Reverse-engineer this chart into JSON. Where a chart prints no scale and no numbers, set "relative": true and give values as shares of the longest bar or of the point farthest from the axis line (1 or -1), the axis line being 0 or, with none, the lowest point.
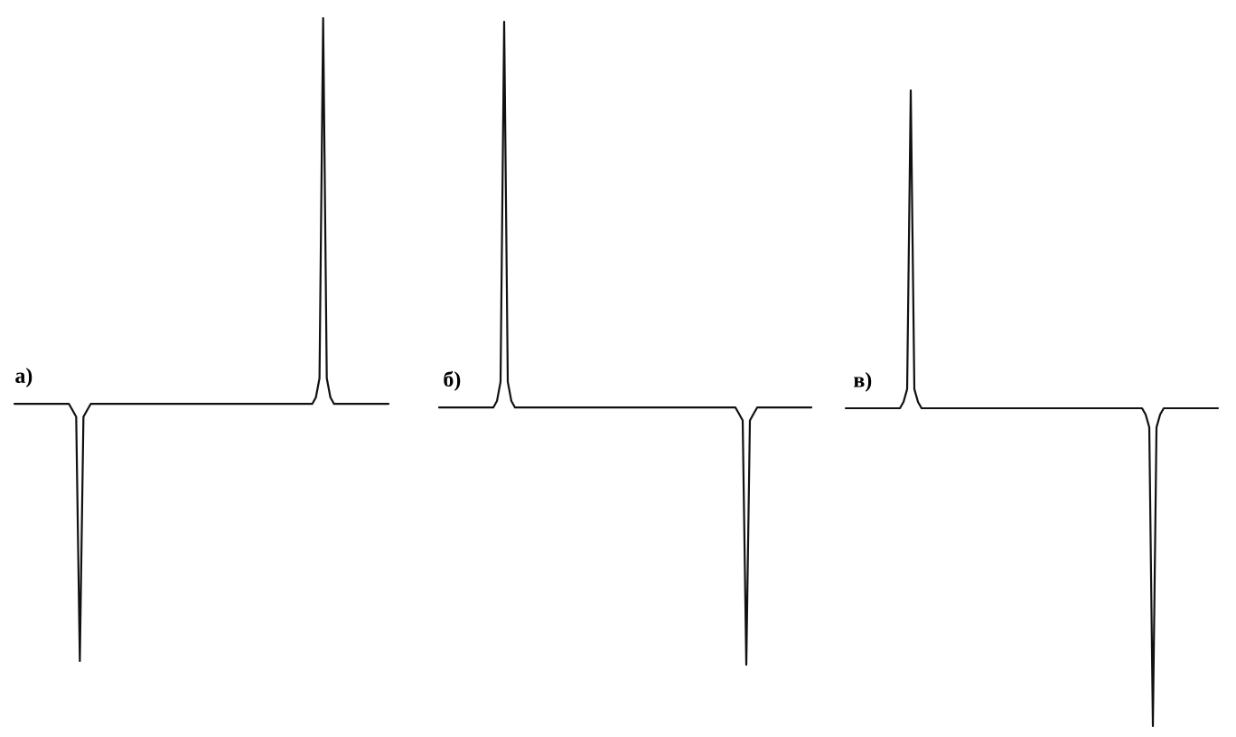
{
  "chart_data": [
    {
      "type": "line",
      "title": "а)",
      "relative": true,
      "color": "#111111",
      "categories": [
        null,
        null,
        null,
        null,
        null,
        null,
        null,
        null,
        null,
        null,
        null,
        null,
        null,
        null,
        null,
        null,
        null,
        null,
        null,
        null,
        null,
        null,
        null,
        null,
        null,
        null,
        null,
        null,
        null,
        null,
        null,
        null,
        null,
        null,
        null,
        null,
        null,
        null,
        null,
        null,
        null,
        null,
        null,
        null,
        null,
        null,
        null,
        null,
        null,
        null,
        null,
        null,
        null,
        null,
        null,
        null,
        null,
        null,
        null,
        null,
        null,
        null,
        null,
        null,
        null,
        null,
        null,
        null,
        null,
        null,
        null,
        null,
        null,
        null,
        null,
        null,
        null,
        null,
        null,
        null,
        null,
        null,
        null,
        null,
        null,
        null,
        null,
        null,
        null,
        null,
        null,
        null,
        null,
        null,
        null,
        null,
        null,
        null,
        null,
        null,
        null,
        null,
        null,
        null
      ],
      "values": [
        0.4,
        0.4,
        0.4,
        0.4,
        0.4,
        0.4,
        0.4,
        0.4,
        0.4,
        0.4,
        0.4,
        0.4,
        0.4,
        0.4,
        0.4,
        0.4,
        0.39,
        0.38,
        0,
        0.38,
        0.39,
        0.4,
        0.4,
        0.4,
        0.4,
        0.4,
        0.4,
        0.4,
        0.4,
        0.4,
        0.4,
        0.4,
        0.4,
        0.4,
        0.4,
        0.4,
        0.4,
        0.4,
        0.4,
        0.4,
        0.4,
        0.4,
        0.4,
        0.4,
        0.4,
        0.4,
        0.4,
        0.4,
        0.4,
        0.4,
        0.4,
        0.4,
        0.4,
        0.4,
        0.4,
        0.4,
        0.4,
        0.4,
        0.4,
        0.4,
        0.4,
        0.4,
        0.4,
        0.4,
        0.4,
        0.4,
        0.4,
        0.4,
        0.4,
        0.4,
        0.4,
        0.4,
        0.4,
        0.4,
        0.4,
        0.4,
        0.4,
        0.4,
        0.4,
        0.4,
        0.4,
        0.4,
        0.4,
        0.41,
        0.44,
        1,
        0.44,
        0.41,
        0.4,
        0.4,
        0.4,
        0.4,
        0.4,
        0.4,
        0.4,
        0.4,
        0.4,
        0.4,
        0.4,
        0.4,
        0.4,
        0.4,
        0.4,
        0.4
      ]
    },
    {
      "type": "line",
      "title": "б)",
      "relative": true,
      "color": "#111111",
      "categories": [
        null,
        null,
        null,
        null,
        null,
        null,
        null,
        null,
        null,
        null,
        null,
        null,
        null,
        null,
        null,
        null,
        null,
        null,
        null,
        null,
        null,
        null,
        null,
        null,
        null,
        null,
        null,
        null,
        null,
        null,
        null,
        null,
        null,
        null,
        null,
        null,
        null,
        null,
        null,
        null,
        null,
        null,
        null,
        null,
        null,
        null,
        null,
        null,
        null,
        null,
        null,
        null,
        null,
        null,
        null,
        null,
        null,
        null,
        null,
        null,
        null,
        null,
        null,
        null,
        null,
        null,
        null,
        null,
        null,
        null,
        null,
        null,
        null,
        null,
        null,
        null,
        null,
        null,
        null,
        null,
        null,
        null,
        null,
        null,
        null,
        null,
        null,
        null,
        null,
        null,
        null,
        null,
        null,
        null,
        null,
        null,
        null,
        null,
        null,
        null,
        null,
        null,
        null,
        null
      ],
      "values": [
        0.4,
        0.4,
        0.4,
        0.4,
        0.4,
        0.4,
        0.4,
        0.4,
        0.4,
        0.4,
        0.4,
        0.4,
        0.4,
        0.4,
        0.4,
        0.4,
        0.41,
        0.44,
        1,
        0.44,
        0.41,
        0.4,
        0.4,
        0.4,
        0.4,
        0.4,
        0.4,
        0.4,
        0.4,
        0.4,
        0.4,
        0.4,
        0.4,
        0.4,
        0.4,
        0.4,
        0.4,
        0.4,
        0.4,
        0.4,
        0.4,
        0.4,
        0.4,
        0.4,
        0.4,
        0.4,
        0.4,
        0.4,
        0.4,
        0.4,
        0.4,
        0.4,
        0.4,
        0.4,
        0.4,
        0.4,
        0.4,
        0.4,
        0.4,
        0.4,
        0.4,
        0.4,
        0.4,
        0.4,
        0.4,
        0.4,
        0.4,
        0.4,
        0.4,
        0.4,
        0.4,
        0.4,
        0.4,
        0.4,
        0.4,
        0.4,
        0.4,
        0.4,
        0.4,
        0.4,
        0.4,
        0.4,
        0.4,
        0.39,
        0.38,
        0,
        0.38,
        0.39,
        0.4,
        0.4,
        0.4,
        0.4,
        0.4,
        0.4,
        0.4,
        0.4,
        0.4,
        0.4,
        0.4,
        0.4,
        0.4,
        0.4,
        0.4,
        0.4
      ]
    },
    {
      "type": "line",
      "title": "в)",
      "relative": true,
      "color": "#111111",
      "categories": [
        null,
        null,
        null,
        null,
        null,
        null,
        null,
        null,
        null,
        null,
        null,
        null,
        null,
        null,
        null,
        null,
        null,
        null,
        null,
        null,
        null,
        null,
        null,
        null,
        null,
        null,
        null,
        null,
        null,
        null,
        null,
        null,
        null,
        null,
        null,
        null,
        null,
        null,
        null,
        null,
        null,
        null,
        null,
        null,
        null,
        null,
        null,
        null,
        null,
        null,
        null,
        null,
        null,
        null,
        null,
        null,
        null,
        null,
        null,
        null,
        null,
        null,
        null,
        null,
        null,
        null,
        null,
        null,
        null,
        null,
        null,
        null,
        null,
        null,
        null,
        null,
        null,
        null,
        null,
        null,
        null,
        null,
        null,
        null,
        null,
        null,
        null,
        null,
        null,
        null,
        null,
        null,
        null,
        null,
        null,
        null,
        null,
        null,
        null,
        null,
        null,
        null,
        null,
        null
      ],
      "values": [
        0.5,
        0.5,
        0.5,
        0.5,
        0.5,
        0.5,
        0.5,
        0.5,
        0.5,
        0.5,
        0.5,
        0.5,
        0.5,
        0.5,
        0.5,
        0.5,
        0.51,
        0.53,
        1,
        0.53,
        0.51,
        0.5,
        0.5,
        0.5,
        0.5,
        0.5,
        0.5,
        0.5,
        0.5,
        0.5,
        0.5,
        0.5,
        0.5,
        0.5,
        0.5,
        0.5,
        0.5,
        0.5,
        0.5,
        0.5,
        0.5,
        0.5,
        0.5,
        0.5,
        0.5,
        0.5,
        0.5,
        0.5,
        0.5,
        0.5,
        0.5,
        0.5,
        0.5,
        0.5,
        0.5,
        0.5,
        0.5,
        0.5,
        0.5,
        0.5,
        0.5,
        0.5,
        0.5,
        0.5,
        0.5,
        0.5,
        0.5,
        0.5,
        0.5,
        0.5,
        0.5,
        0.5,
        0.5,
        0.5,
        0.5,
        0.5,
        0.5,
        0.5,
        0.5,
        0.5,
        0.5,
        0.5,
        0.5,
        0.49,
        0.47,
        0,
        0.47,
        0.49,
        0.5,
        0.5,
        0.5,
        0.5,
        0.5,
        0.5,
        0.5,
        0.5,
        0.5,
        0.5,
        0.5,
        0.5,
        0.5,
        0.5,
        0.5,
        0.5
      ]
    }
  ]
}
